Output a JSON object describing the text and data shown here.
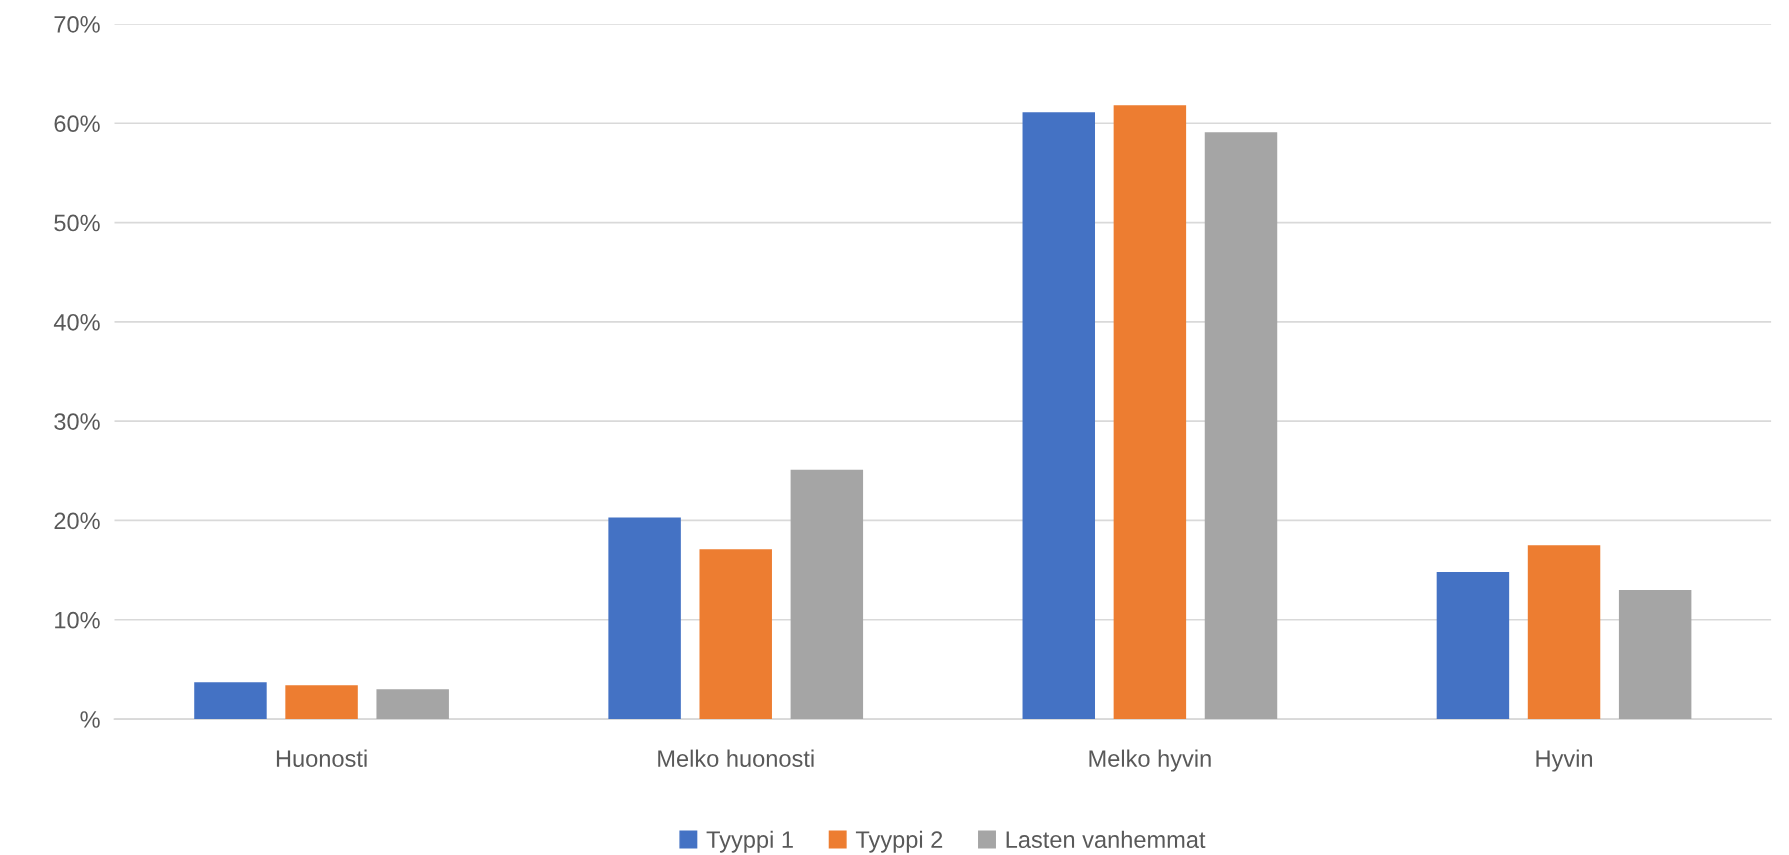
{
  "chart_data": {
    "type": "bar",
    "categories": [
      "Huonosti",
      "Melko huonosti",
      "Melko hyvin",
      "Hyvin"
    ],
    "series": [
      {
        "name": "Tyyppi 1",
        "color": "#4472c4",
        "values": [
          3.7,
          20.3,
          61.1,
          14.8
        ]
      },
      {
        "name": "Tyyppi 2",
        "color": "#ed7d31",
        "values": [
          3.4,
          17.1,
          61.8,
          17.5
        ]
      },
      {
        "name": "Lasten vanhemmat",
        "color": "#a5a5a5",
        "values": [
          3.0,
          25.1,
          59.1,
          13.0
        ]
      }
    ],
    "ylim": [
      0,
      70
    ],
    "yticks": [
      {
        "value": 0,
        "label": "%"
      },
      {
        "value": 10,
        "label": "10%"
      },
      {
        "value": 20,
        "label": "20%"
      },
      {
        "value": 30,
        "label": "30%"
      },
      {
        "value": 40,
        "label": "40%"
      },
      {
        "value": 50,
        "label": "50%"
      },
      {
        "value": 60,
        "label": "60%"
      },
      {
        "value": 70,
        "label": "70%"
      }
    ],
    "grid": "y",
    "legend": "bottom"
  }
}
